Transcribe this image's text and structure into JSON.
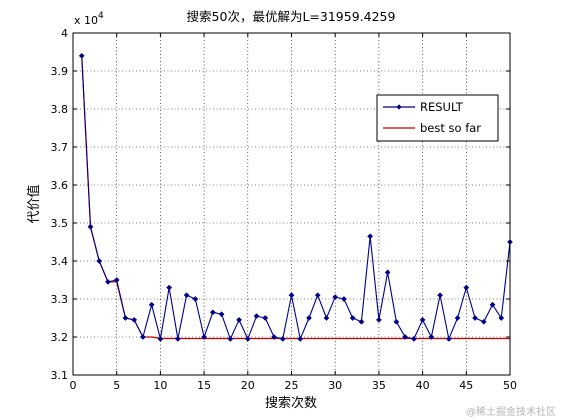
{
  "chart_data": {
    "type": "line",
    "title": "搜索50次，最优解为L=31959.4259",
    "xlabel": "搜索次数",
    "ylabel": "代价值",
    "y_exponent_label": "x 10",
    "y_exponent_power": "4",
    "xlim": [
      0,
      50
    ],
    "ylim": [
      3.1,
      4.0
    ],
    "x_ticks": [
      "0",
      "5",
      "10",
      "15",
      "20",
      "25",
      "30",
      "35",
      "40",
      "45",
      "50"
    ],
    "y_ticks": [
      "3.1",
      "3.2",
      "3.3",
      "3.4",
      "3.5",
      "3.6",
      "3.7",
      "3.8",
      "3.9",
      "4"
    ],
    "grid": true,
    "legend_position": "top-right",
    "x": [
      1,
      2,
      3,
      4,
      5,
      6,
      7,
      8,
      9,
      10,
      11,
      12,
      13,
      14,
      15,
      16,
      17,
      18,
      19,
      20,
      21,
      22,
      23,
      24,
      25,
      26,
      27,
      28,
      29,
      30,
      31,
      32,
      33,
      34,
      35,
      36,
      37,
      38,
      39,
      40,
      41,
      42,
      43,
      44,
      45,
      46,
      47,
      48,
      49,
      50
    ],
    "series": [
      {
        "name": "RESULT",
        "color": "#00008b",
        "marker": "diamond",
        "values": [
          3.94,
          3.49,
          3.4,
          3.345,
          3.35,
          3.25,
          3.245,
          3.2,
          3.285,
          3.195,
          3.33,
          3.195,
          3.31,
          3.3,
          3.2,
          3.265,
          3.26,
          3.195,
          3.245,
          3.195,
          3.255,
          3.25,
          3.2,
          3.195,
          3.31,
          3.195,
          3.25,
          3.31,
          3.25,
          3.305,
          3.3,
          3.25,
          3.24,
          3.465,
          3.245,
          3.37,
          3.24,
          3.2,
          3.195,
          3.245,
          3.2,
          3.31,
          3.195,
          3.25,
          3.33,
          3.25,
          3.24,
          3.285,
          3.25,
          3.45
        ]
      },
      {
        "name": "best so far",
        "color": "#cc0000",
        "marker": "none",
        "values": [
          3.94,
          3.49,
          3.4,
          3.345,
          3.345,
          3.25,
          3.245,
          3.2,
          3.2,
          3.196,
          3.196,
          3.196,
          3.196,
          3.196,
          3.196,
          3.196,
          3.196,
          3.196,
          3.196,
          3.196,
          3.196,
          3.196,
          3.196,
          3.196,
          3.196,
          3.196,
          3.196,
          3.196,
          3.196,
          3.196,
          3.196,
          3.196,
          3.196,
          3.196,
          3.196,
          3.196,
          3.196,
          3.196,
          3.196,
          3.196,
          3.196,
          3.196,
          3.196,
          3.196,
          3.196,
          3.196,
          3.196,
          3.196,
          3.196,
          3.196
        ]
      }
    ]
  },
  "watermark": "@稀土掘金技术社区"
}
